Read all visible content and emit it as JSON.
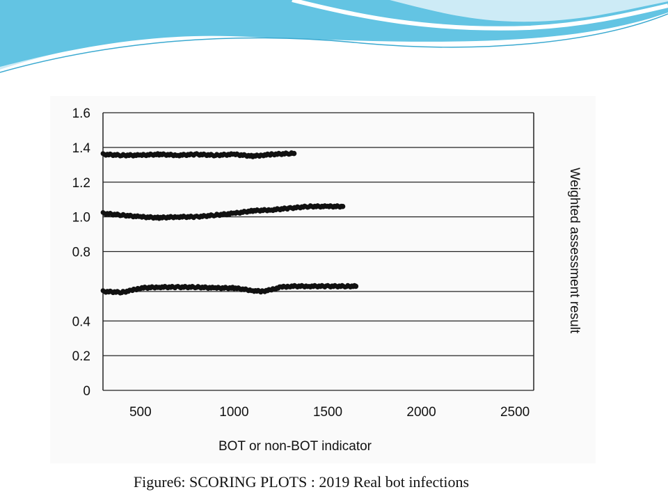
{
  "caption": "Figure6: SCORING PLOTS  : 2019 Real bot infections",
  "colors": {
    "wave_dark": "#5bc0de",
    "wave_light": "#bfe6f3",
    "marker": "#111111"
  },
  "chart_data": {
    "type": "scatter",
    "title": "",
    "xlabel": "BOT or non-BOT indicator",
    "ylabel": "Weighted assessment result",
    "xlim": [
      300,
      2600
    ],
    "ylim": [
      0,
      1.6
    ],
    "y_ticks": [
      {
        "label": "1.6",
        "value": 1.6
      },
      {
        "label": "1.4",
        "value": 1.4
      },
      {
        "label": "1.2",
        "value": 1.2
      },
      {
        "label": "1.0",
        "value": 1.0
      },
      {
        "label": "0.8",
        "value": 0.8
      },
      {
        "label": "0.4",
        "value": 0.4
      },
      {
        "label": "0.2",
        "value": 0.2
      },
      {
        "label": "0",
        "value": 0
      }
    ],
    "gridlines": [
      1.6,
      1.4,
      1.2,
      1.0,
      0.8,
      0.57,
      0.4,
      0.2,
      0
    ],
    "x_ticks": [
      {
        "label": "500",
        "value": 500
      },
      {
        "label": "1000",
        "value": 1000
      },
      {
        "label": "1500",
        "value": 1500
      },
      {
        "label": "2000",
        "value": 2000
      },
      {
        "label": "2500",
        "value": 2500
      }
    ],
    "grid": true,
    "series": [
      {
        "x": [
          300,
          400,
          500,
          600,
          700,
          800,
          900,
          1000,
          1100,
          1150,
          1200,
          1300,
          1320
        ],
        "y": [
          1.36,
          1.355,
          1.355,
          1.36,
          1.355,
          1.36,
          1.355,
          1.36,
          1.35,
          1.355,
          1.36,
          1.365,
          1.365
        ]
      },
      {
        "x": [
          300,
          400,
          500,
          600,
          700,
          800,
          900,
          1000,
          1100,
          1200,
          1300,
          1400,
          1500,
          1580
        ],
        "y": [
          1.02,
          1.01,
          1.0,
          0.995,
          1.0,
          1.0,
          1.01,
          1.02,
          1.035,
          1.04,
          1.05,
          1.06,
          1.06,
          1.06
        ]
      },
      {
        "x": [
          300,
          400,
          450,
          500,
          600,
          700,
          800,
          900,
          1000,
          1100,
          1150,
          1200,
          1250,
          1300,
          1400,
          1500,
          1600,
          1650
        ],
        "y": [
          0.57,
          0.565,
          0.575,
          0.59,
          0.595,
          0.595,
          0.595,
          0.59,
          0.59,
          0.575,
          0.57,
          0.58,
          0.595,
          0.6,
          0.6,
          0.6,
          0.6,
          0.6
        ]
      }
    ]
  }
}
